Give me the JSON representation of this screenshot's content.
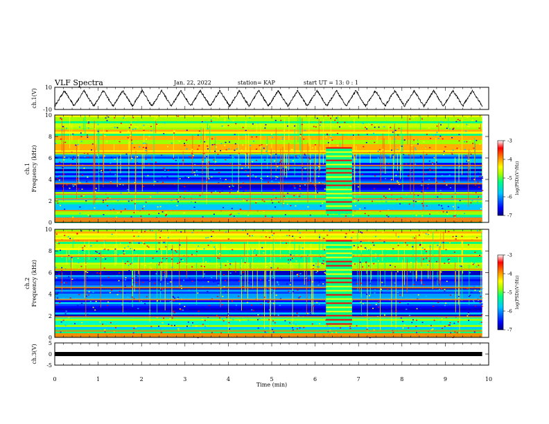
{
  "header": {
    "title": "VLF Spectra",
    "date": "Jan. 22, 2022",
    "station": "station= KAP",
    "start_ut": "start  UT =   13: 0  : 1"
  },
  "colors": {
    "colorbar": [
      "#000080",
      "#0000ff",
      "#00c8ff",
      "#00ff80",
      "#a0ff00",
      "#ffff00",
      "#ff8000",
      "#ff0000",
      "#ffffff"
    ]
  },
  "chart_data": [
    {
      "type": "line",
      "panel": "ch1-voltage",
      "ylabel": "ch.1(V)",
      "y_ticks": [
        "10",
        "-10"
      ],
      "ylim": [
        -10,
        10
      ],
      "xlim": [
        0,
        10
      ],
      "x_cycles": 22,
      "x_end": 9.85,
      "y_amplitude": 7
    },
    {
      "type": "heatmap",
      "panel": "ch1-spectrogram",
      "ylabel": "ch.1 Frequency (kHz)",
      "ylabel_line1": "ch.1",
      "ylabel_line2": "Frequency (kHz)",
      "y_ticks": [
        "0",
        "2",
        "4",
        "6",
        "8",
        "10"
      ],
      "ylim": [
        0,
        10
      ],
      "xlim": [
        0,
        10
      ],
      "x_end": 9.85,
      "burst_interval": [
        6.25,
        6.85
      ],
      "lines_khz": [
        0.4,
        1.1,
        2.2,
        2.6,
        3.6,
        5.3,
        6.5
      ],
      "colorbar": {
        "label": "log(PSD)(V²/Hz)",
        "ticks": [
          "-3",
          "-4",
          "-5",
          "-6",
          "-7"
        ],
        "range": [
          -7,
          -3
        ]
      }
    },
    {
      "type": "heatmap",
      "panel": "ch2-spectrogram",
      "ylabel": "ch.2 Frequency (kHz)",
      "ylabel_line1": "ch.2",
      "ylabel_line2": "Frequency (kHz)",
      "y_ticks": [
        "0",
        "2",
        "4",
        "6",
        "8",
        "10"
      ],
      "ylim": [
        0,
        10
      ],
      "xlim": [
        0,
        10
      ],
      "x_end": 9.85,
      "burst_interval": [
        6.25,
        6.85
      ],
      "lines_khz": [
        0.6,
        1.9,
        3.5,
        4.6,
        6.3,
        7.5,
        9.0
      ],
      "colorbar": {
        "label": "log(PSD)(V²/Hz)",
        "ticks": [
          "-3",
          "-4",
          "-5",
          "-6",
          "-7"
        ],
        "range": [
          -7,
          -3
        ]
      }
    },
    {
      "type": "line",
      "panel": "ch3-voltage",
      "ylabel": "ch.3(V)",
      "y_ticks": [
        "5",
        "0",
        "-5"
      ],
      "ylim": [
        -5,
        5
      ],
      "xlim": [
        0,
        10
      ],
      "x_end": 9.85,
      "value": 0,
      "xlabel": "Time (min)",
      "x_ticks": [
        "0",
        "1",
        "2",
        "3",
        "4",
        "5",
        "6",
        "7",
        "8",
        "9",
        "10"
      ]
    }
  ]
}
